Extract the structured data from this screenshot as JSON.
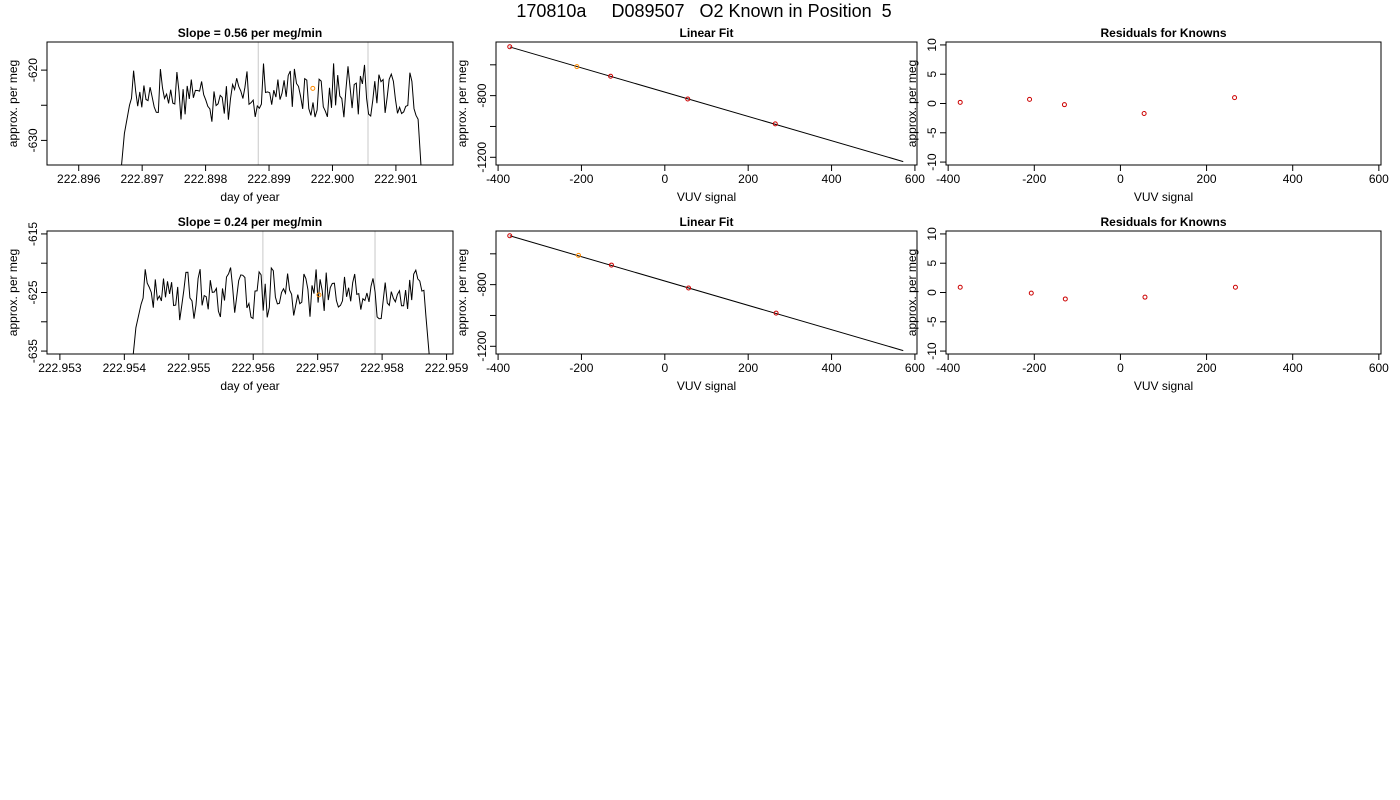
{
  "page": {
    "title": "170810a     D089507   O2 Known in Position  5"
  },
  "chart_data": [
    {
      "id": "r1c1",
      "type": "line",
      "title": "Slope =  0.56  per meg/min",
      "xlabel": "day of year",
      "ylabel": "approx. per meg",
      "xlim": [
        222.8955,
        222.9019
      ],
      "ylim": [
        -633.5,
        -616.0
      ],
      "xticks": [
        222.896,
        222.897,
        222.898,
        222.899,
        222.9,
        222.901
      ],
      "xtick_labels": [
        "222.896",
        "222.897",
        "222.898",
        "222.899",
        "222.900",
        "222.901"
      ],
      "yticks": [
        -630,
        -625,
        -620
      ],
      "ytick_labels": [
        "-630",
        "",
        "-620"
      ],
      "vlines": [
        222.89883,
        222.90056
      ],
      "seed": 17,
      "trace": {
        "x_start": 222.89661,
        "x_end": 222.90144,
        "level": -623.3,
        "amplitude": 2.0,
        "rise": [
          [
            222.89661,
            -640
          ],
          [
            222.89672,
            -629
          ],
          [
            222.8968,
            -625
          ]
        ],
        "fall": [
          [
            222.90135,
            -627
          ],
          [
            222.90144,
            -640
          ]
        ]
      },
      "marker": {
        "x": 222.89969,
        "y": -622.6,
        "color": "#ff8c00"
      }
    },
    {
      "id": "r1c2",
      "type": "scatter",
      "title": "Linear Fit",
      "xlabel": "VUV signal",
      "ylabel": "approx. per meg",
      "xlim": [
        -405,
        605
      ],
      "ylim": [
        -1250,
        -452
      ],
      "xticks": [
        -400,
        -200,
        0,
        200,
        400,
        600
      ],
      "xtick_labels": [
        "-400",
        "-200",
        "0",
        "200",
        "400",
        "600"
      ],
      "yticks": [
        -1200,
        -1000,
        -800,
        -600
      ],
      "ytick_labels": [
        "-1200",
        "",
        "-800",
        ""
      ],
      "points": [
        {
          "x": -372,
          "y": -483,
          "color": "#cc0000"
        },
        {
          "x": -211,
          "y": -612,
          "color": "#ff8c00"
        },
        {
          "x": -130,
          "y": -674,
          "color": "#cc0000"
        },
        {
          "x": 55,
          "y": -822,
          "color": "#cc0000"
        },
        {
          "x": 265,
          "y": -983,
          "color": "#cc0000"
        }
      ],
      "fit_line": [
        [
          -372,
          -484
        ],
        [
          572,
          -1228
        ]
      ]
    },
    {
      "id": "r1c3",
      "type": "scatter",
      "title": "Residuals for Knowns",
      "xlabel": "VUV signal",
      "ylabel": "approx. per meg",
      "xlim": [
        -405,
        605
      ],
      "ylim": [
        -10.5,
        10.5
      ],
      "xticks": [
        -400,
        -200,
        0,
        200,
        400,
        600
      ],
      "xtick_labels": [
        "-400",
        "-200",
        "0",
        "200",
        "400",
        "600"
      ],
      "yticks": [
        -10,
        -5,
        0,
        5,
        10
      ],
      "ytick_labels": [
        "-10",
        "-5",
        "0",
        "5",
        "10"
      ],
      "points": [
        {
          "x": -372,
          "y": 0.2,
          "color": "#cc0000"
        },
        {
          "x": -211,
          "y": 0.7,
          "color": "#cc0000"
        },
        {
          "x": -130,
          "y": -0.2,
          "color": "#cc0000"
        },
        {
          "x": 55,
          "y": -1.7,
          "color": "#cc0000"
        },
        {
          "x": 265,
          "y": 1.0,
          "color": "#cc0000"
        }
      ]
    },
    {
      "id": "r2c1",
      "type": "line",
      "title": "Slope =  0.24  per meg/min",
      "xlabel": "day of year",
      "ylabel": "approx. per meg",
      "xlim": [
        222.9528,
        222.9591
      ],
      "ylim": [
        -635.5,
        -614.5
      ],
      "xticks": [
        222.953,
        222.954,
        222.955,
        222.956,
        222.957,
        222.958,
        222.959
      ],
      "xtick_labels": [
        "222.953",
        "222.954",
        "222.955",
        "222.956",
        "222.957",
        "222.958",
        "222.959"
      ],
      "yticks": [
        -635,
        -630,
        -625,
        -620,
        -615
      ],
      "ytick_labels": [
        "-635",
        "",
        "-625",
        "",
        "-615"
      ],
      "vlines": [
        222.95615,
        222.95789
      ],
      "seed": 29,
      "trace": {
        "x_start": 222.95408,
        "x_end": 222.95878,
        "level": -625.2,
        "amplitude": 2.2,
        "rise": [
          [
            222.95408,
            -642
          ],
          [
            222.95418,
            -631
          ],
          [
            222.95426,
            -627
          ]
        ],
        "fall": [
          [
            222.95868,
            -629
          ],
          [
            222.95878,
            -642
          ]
        ]
      },
      "marker": {
        "x": 222.95702,
        "y": -625.4,
        "color": "#ff8c00"
      }
    },
    {
      "id": "r2c2",
      "type": "scatter",
      "title": "Linear Fit",
      "xlabel": "VUV signal",
      "ylabel": "approx. per meg",
      "xlim": [
        -405,
        605
      ],
      "ylim": [
        -1250,
        -452
      ],
      "xticks": [
        -400,
        -200,
        0,
        200,
        400,
        600
      ],
      "xtick_labels": [
        "-400",
        "-200",
        "0",
        "200",
        "400",
        "600"
      ],
      "yticks": [
        -1200,
        -1000,
        -800,
        -600
      ],
      "ytick_labels": [
        "-1200",
        "",
        "-800",
        ""
      ],
      "points": [
        {
          "x": -372,
          "y": -483,
          "color": "#cc0000"
        },
        {
          "x": -207,
          "y": -610,
          "color": "#ff8c00"
        },
        {
          "x": -128,
          "y": -673,
          "color": "#cc0000"
        },
        {
          "x": 57,
          "y": -822,
          "color": "#cc0000"
        },
        {
          "x": 267,
          "y": -985,
          "color": "#cc0000"
        }
      ],
      "fit_line": [
        [
          -372,
          -483
        ],
        [
          572,
          -1228
        ]
      ]
    },
    {
      "id": "r2c3",
      "type": "scatter",
      "title": "Residuals for Knowns",
      "xlabel": "VUV signal",
      "ylabel": "approx. per meg",
      "xlim": [
        -405,
        605
      ],
      "ylim": [
        -10.5,
        10.5
      ],
      "xticks": [
        -400,
        -200,
        0,
        200,
        400,
        600
      ],
      "xtick_labels": [
        "-400",
        "-200",
        "0",
        "200",
        "400",
        "600"
      ],
      "yticks": [
        -10,
        -5,
        0,
        5,
        10
      ],
      "ytick_labels": [
        "-10",
        "-5",
        "0",
        "5",
        "10"
      ],
      "points": [
        {
          "x": -372,
          "y": 0.9,
          "color": "#cc0000"
        },
        {
          "x": -207,
          "y": -0.1,
          "color": "#cc0000"
        },
        {
          "x": -128,
          "y": -1.1,
          "color": "#cc0000"
        },
        {
          "x": 57,
          "y": -0.8,
          "color": "#cc0000"
        },
        {
          "x": 267,
          "y": 0.9,
          "color": "#cc0000"
        }
      ]
    }
  ]
}
